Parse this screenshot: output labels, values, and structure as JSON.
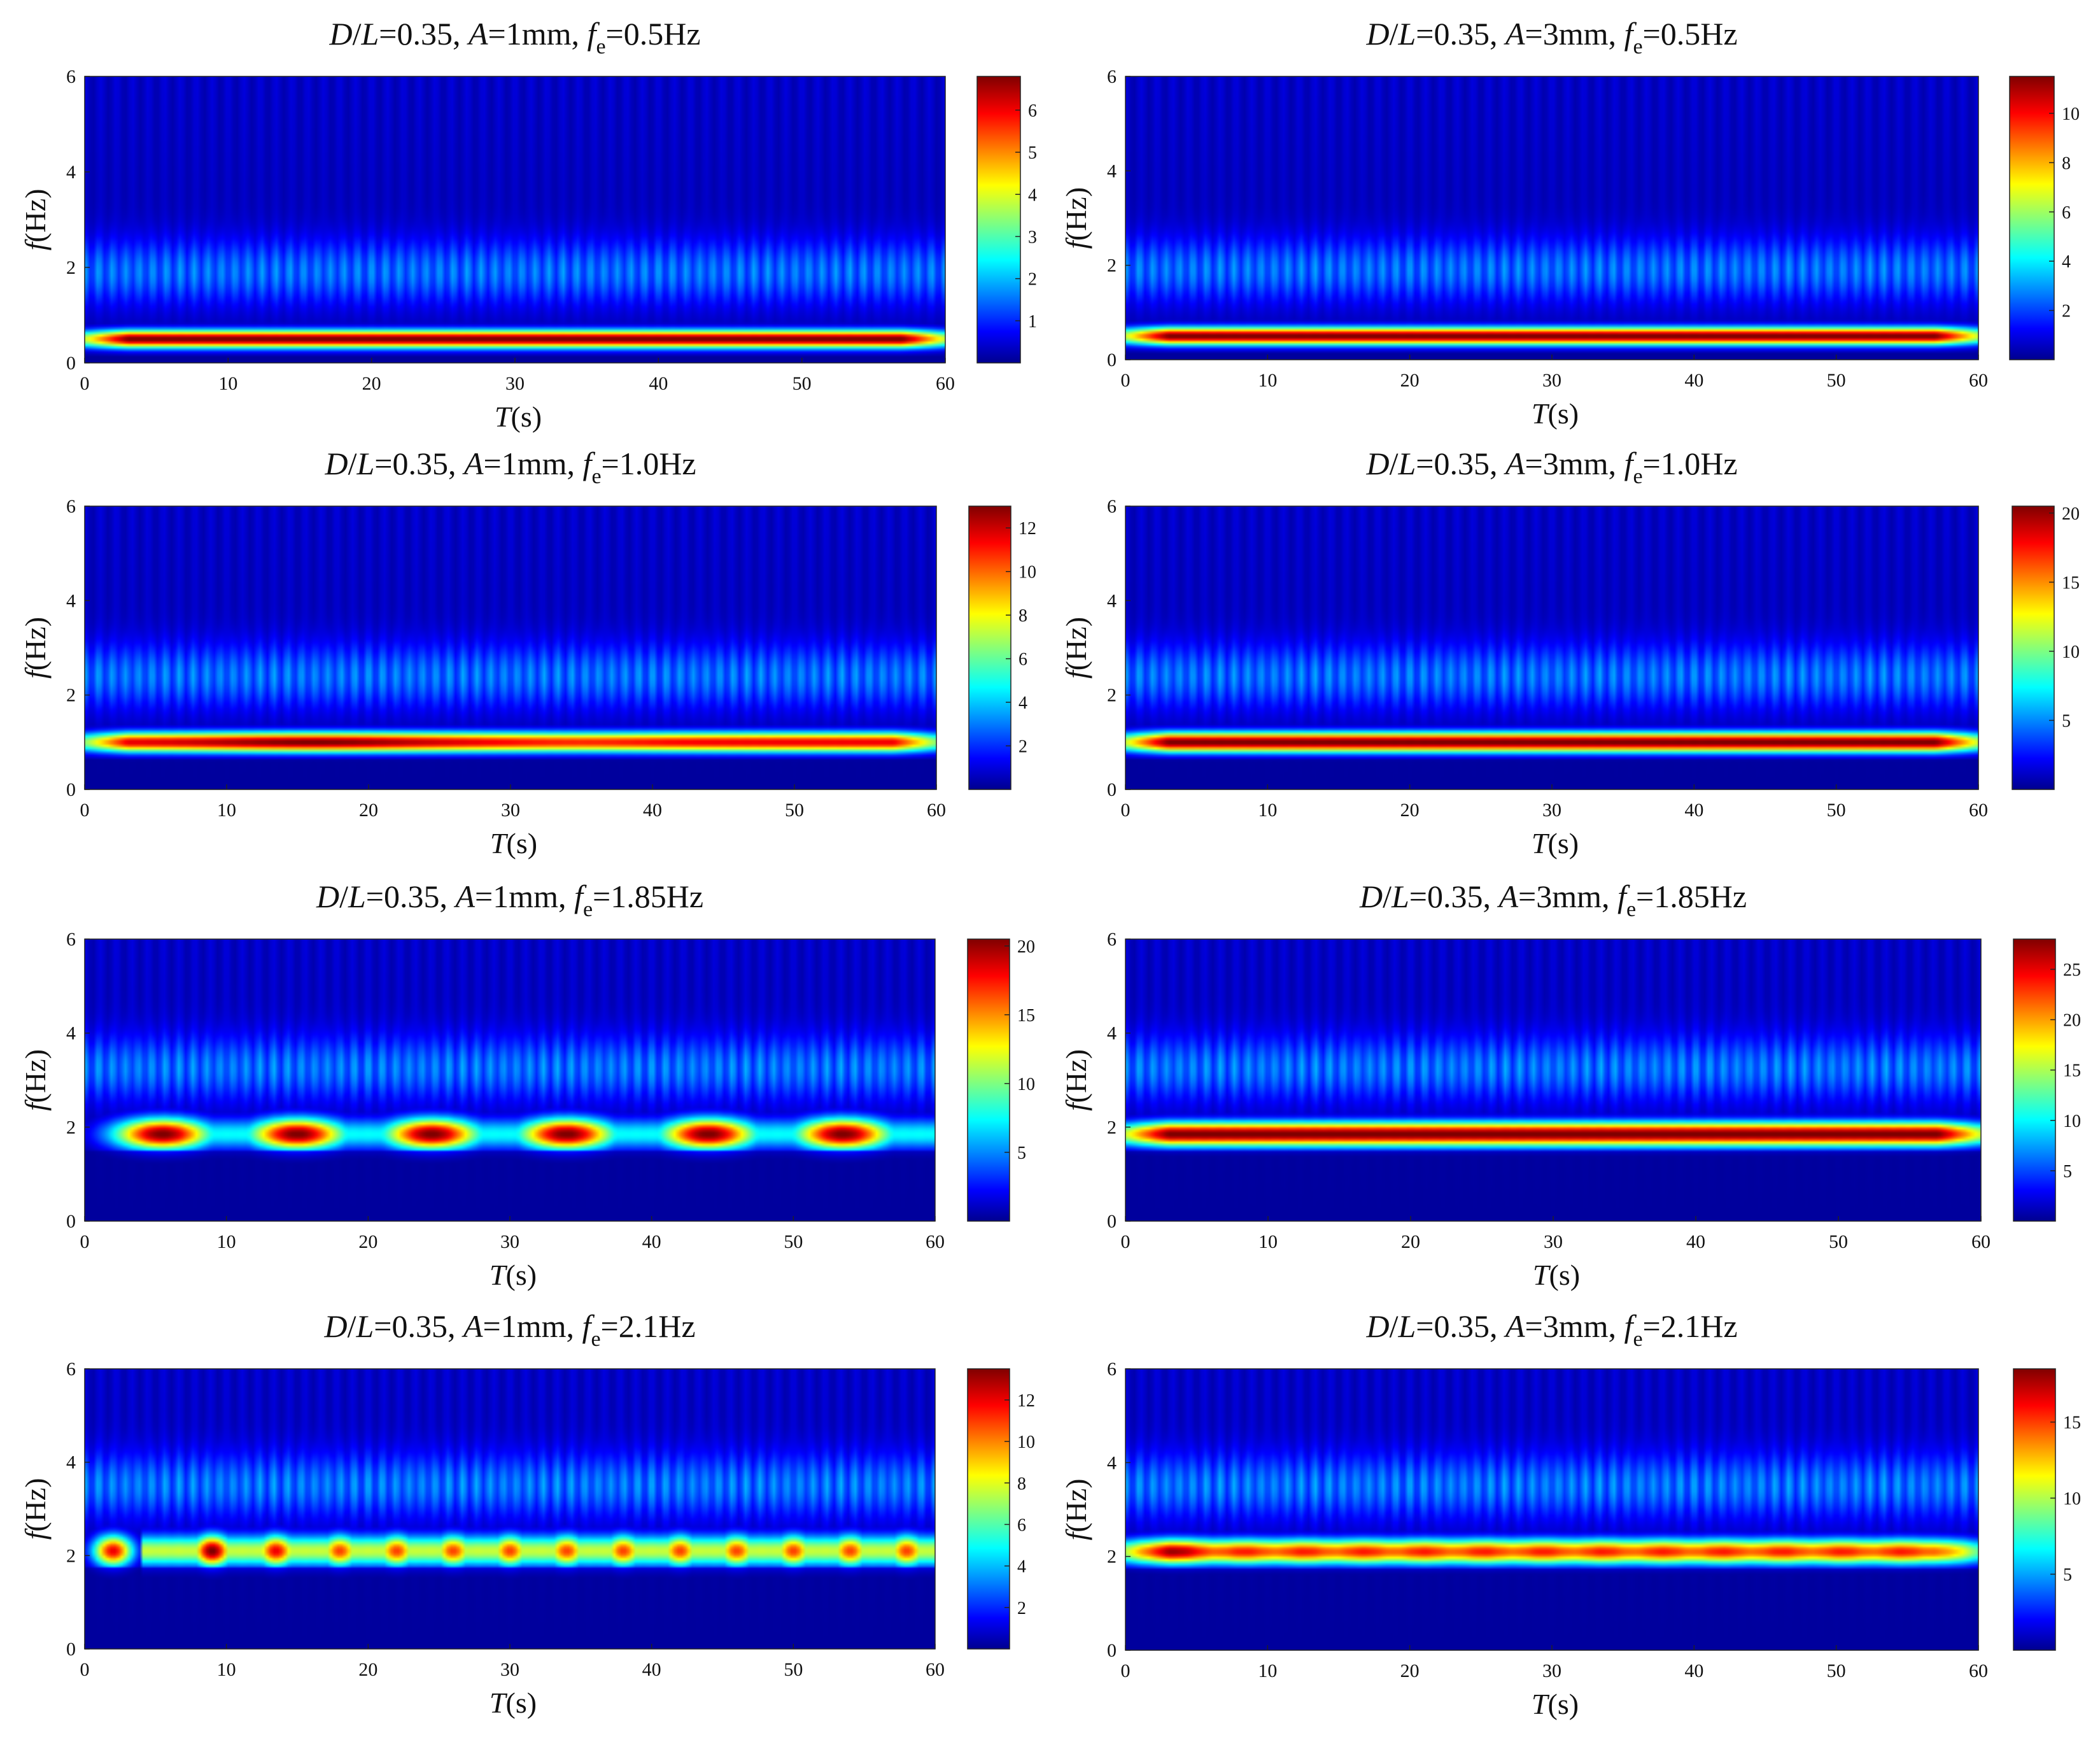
{
  "colors": {
    "colormap": "jet",
    "colormap_stops": [
      "#00008f",
      "#0000ff",
      "#00ffff",
      "#ffff00",
      "#ff0000",
      "#800000"
    ],
    "background": "#00008f"
  },
  "chart_data": [
    {
      "type": "heatmap",
      "panel": "1mm-0.5Hz",
      "title_parts": [
        "D",
        "/",
        "L",
        "=0.35, ",
        "A",
        "=1mm, ",
        "f",
        "e",
        "=0.5Hz"
      ],
      "xlabel": "T(s)",
      "ylabel": "f(Hz)",
      "xlim": [
        0,
        60
      ],
      "ylim": [
        0,
        6
      ],
      "xticks": [
        "0",
        "10",
        "20",
        "30",
        "40",
        "50",
        "60"
      ],
      "yticks": [
        "0",
        "2",
        "4",
        "6"
      ],
      "colorbar_ticks": [
        "1",
        "2",
        "3",
        "4",
        "5",
        "6"
      ],
      "colorbar_range": [
        0,
        6.8
      ],
      "ridge_frequency": 0.5,
      "peak_magnitude": 6.8,
      "pattern": "steady"
    },
    {
      "type": "heatmap",
      "panel": "3mm-0.5Hz",
      "title_parts": [
        "D",
        "/",
        "L",
        "=0.35, ",
        "A",
        "=3mm, ",
        "f",
        "e",
        "=0.5Hz"
      ],
      "xlabel": "T(s)",
      "ylabel": "f(Hz)",
      "xlim": [
        0,
        60
      ],
      "ylim": [
        0,
        6
      ],
      "xticks": [
        "0",
        "10",
        "20",
        "30",
        "40",
        "50",
        "60"
      ],
      "yticks": [
        "0",
        "2",
        "4",
        "6"
      ],
      "colorbar_ticks": [
        "2",
        "4",
        "6",
        "8",
        "10"
      ],
      "colorbar_range": [
        0,
        11.5
      ],
      "ridge_frequency": 0.5,
      "peak_magnitude": 11.5,
      "pattern": "steady"
    },
    {
      "type": "heatmap",
      "panel": "1mm-1.0Hz",
      "title_parts": [
        "D",
        "/",
        "L",
        "=0.35, ",
        "A",
        "=1mm, ",
        "f",
        "e",
        "=1.0Hz"
      ],
      "xlabel": "T(s)",
      "ylabel": "f(Hz)",
      "xlim": [
        0,
        60
      ],
      "ylim": [
        0,
        6
      ],
      "xticks": [
        "0",
        "10",
        "20",
        "30",
        "40",
        "50",
        "60"
      ],
      "yticks": [
        "0",
        "2",
        "4",
        "6"
      ],
      "colorbar_ticks": [
        "2",
        "4",
        "6",
        "8",
        "10",
        "12"
      ],
      "colorbar_range": [
        0,
        13
      ],
      "ridge_frequency": 1.0,
      "peak_magnitude": 13,
      "pattern": "steady"
    },
    {
      "type": "heatmap",
      "panel": "3mm-1.0Hz",
      "title_parts": [
        "D",
        "/",
        "L",
        "=0.35, ",
        "A",
        "=3mm, ",
        "f",
        "e",
        "=1.0Hz"
      ],
      "xlabel": "T(s)",
      "ylabel": "f(Hz)",
      "xlim": [
        0,
        60
      ],
      "ylim": [
        0,
        6
      ],
      "xticks": [
        "0",
        "10",
        "20",
        "30",
        "40",
        "50",
        "60"
      ],
      "yticks": [
        "0",
        "2",
        "4",
        "6"
      ],
      "colorbar_ticks": [
        "5",
        "10",
        "15",
        "20"
      ],
      "colorbar_range": [
        0,
        20.5
      ],
      "ridge_frequency": 1.0,
      "peak_magnitude": 20.5,
      "pattern": "steady"
    },
    {
      "type": "heatmap",
      "panel": "1mm-1.85Hz",
      "title_parts": [
        "D",
        "/",
        "L",
        "=0.35, ",
        "A",
        "=1mm, ",
        "f",
        "e",
        "=1.85Hz"
      ],
      "xlabel": "T(s)",
      "ylabel": "f(Hz)",
      "xlim": [
        0,
        60
      ],
      "ylim": [
        0,
        6
      ],
      "xticks": [
        "0",
        "10",
        "20",
        "30",
        "40",
        "50",
        "60"
      ],
      "yticks": [
        "0",
        "2",
        "4",
        "6"
      ],
      "colorbar_ticks": [
        "5",
        "10",
        "15",
        "20"
      ],
      "colorbar_range": [
        0,
        20.5
      ],
      "ridge_frequency": 1.85,
      "peak_magnitude": 20.5,
      "pattern": "blobs",
      "blob_centers_s": [
        5.5,
        15,
        24.5,
        34,
        44,
        53.5
      ]
    },
    {
      "type": "heatmap",
      "panel": "3mm-1.85Hz",
      "title_parts": [
        "D",
        "/",
        "L",
        "=0.35, ",
        "A",
        "=3mm, ",
        "f",
        "e",
        "=1.85Hz"
      ],
      "xlabel": "T(s)",
      "ylabel": "f(Hz)",
      "xlim": [
        0,
        60
      ],
      "ylim": [
        0,
        6
      ],
      "xticks": [
        "0",
        "10",
        "20",
        "30",
        "40",
        "50",
        "60"
      ],
      "yticks": [
        "0",
        "2",
        "4",
        "6"
      ],
      "colorbar_ticks": [
        "5",
        "10",
        "15",
        "20",
        "25"
      ],
      "colorbar_range": [
        0,
        28
      ],
      "ridge_frequency": 1.85,
      "peak_magnitude": 28,
      "pattern": "steady"
    },
    {
      "type": "heatmap",
      "panel": "1mm-2.1Hz",
      "title_parts": [
        "D",
        "/",
        "L",
        "=0.35, ",
        "A",
        "=1mm, ",
        "f",
        "e",
        "=2.1Hz"
      ],
      "xlabel": "T(s)",
      "ylabel": "f(Hz)",
      "xlim": [
        0,
        60
      ],
      "ylim": [
        0,
        6
      ],
      "xticks": [
        "0",
        "10",
        "20",
        "30",
        "40",
        "50",
        "60"
      ],
      "yticks": [
        "0",
        "2",
        "4",
        "6"
      ],
      "colorbar_ticks": [
        "2",
        "4",
        "6",
        "8",
        "10",
        "12"
      ],
      "colorbar_range": [
        0,
        13.5
      ],
      "ridge_frequency": 2.1,
      "peak_magnitude": 13.5,
      "pattern": "beads",
      "blob_centers_s": [
        2,
        9,
        13.5,
        18,
        22,
        26,
        30,
        34,
        38,
        42,
        46,
        50,
        54,
        58
      ]
    },
    {
      "type": "heatmap",
      "panel": "3mm-2.1Hz",
      "title_parts": [
        "D",
        "/",
        "L",
        "=0.35, ",
        "A",
        "=3mm, ",
        "f",
        "e",
        "=2.1Hz"
      ],
      "xlabel": "T(s)",
      "ylabel": "f(Hz)",
      "xlim": [
        0,
        60
      ],
      "ylim": [
        0,
        6
      ],
      "xticks": [
        "0",
        "10",
        "20",
        "30",
        "40",
        "50",
        "60"
      ],
      "yticks": [
        "0",
        "2",
        "4",
        "6"
      ],
      "colorbar_ticks": [
        "5",
        "10",
        "15"
      ],
      "colorbar_range": [
        0,
        18.5
      ],
      "ridge_frequency": 2.1,
      "peak_magnitude": 18.5,
      "pattern": "steady"
    }
  ]
}
